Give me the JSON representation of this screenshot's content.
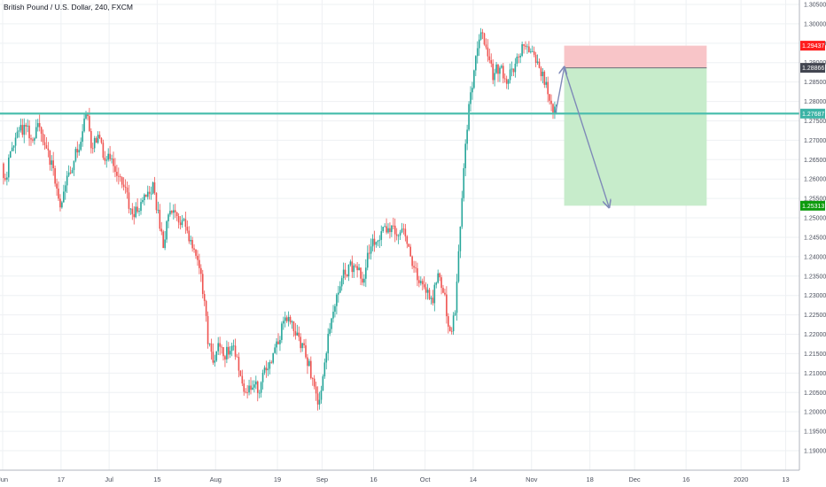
{
  "header": {
    "title": "British Pound / U.S. Dollar, 240, FXCM"
  },
  "colors": {
    "bull": "#26a69a",
    "bear": "#ef5350",
    "hline": "#4dbfae",
    "stop_zone": "#f8c5c8",
    "target_zone": "#c7eccb",
    "arrow": "#7f8ab8",
    "badge_red": "#ff1e1e",
    "badge_dark": "#434651",
    "badge_teal": "#3bb3a5",
    "badge_green": "#0d9b0d"
  },
  "chart_data": {
    "type": "candlestick",
    "instrument": "British Pound / U.S. Dollar",
    "interval": "240",
    "source": "FXCM",
    "ylim": [
      1.188,
      1.307
    ],
    "y_ticks": [
      "1.30500",
      "1.30000",
      "1.29500",
      "1.29000",
      "1.28500",
      "1.28000",
      "1.27500",
      "1.27000",
      "1.26500",
      "1.26000",
      "1.25500",
      "1.25000",
      "1.24500",
      "1.24000",
      "1.23500",
      "1.23000",
      "1.22500",
      "1.22000",
      "1.21500",
      "1.21000",
      "1.20500",
      "1.20000",
      "1.19500",
      "1.19000"
    ],
    "x_ticks": [
      {
        "label": "Jun",
        "x": 0
      },
      {
        "label": "17",
        "x": 17
      },
      {
        "label": "Jul",
        "x": 31
      },
      {
        "label": "15",
        "x": 45
      },
      {
        "label": "Aug",
        "x": 62
      },
      {
        "label": "19",
        "x": 80
      },
      {
        "label": "Sep",
        "x": 93
      },
      {
        "label": "16",
        "x": 108
      },
      {
        "label": "Oct",
        "x": 123
      },
      {
        "label": "14",
        "x": 137
      },
      {
        "label": "Nov",
        "x": 154
      },
      {
        "label": "18",
        "x": 171
      },
      {
        "label": "Dec",
        "x": 184
      },
      {
        "label": "16",
        "x": 199
      },
      {
        "label": "2020",
        "x": 215
      },
      {
        "label": "13",
        "x": 228
      }
    ],
    "price_path": [
      [
        0,
        1.264
      ],
      [
        1,
        1.26
      ],
      [
        3,
        1.268
      ],
      [
        5,
        1.272
      ],
      [
        7,
        1.274
      ],
      [
        9,
        1.27
      ],
      [
        11,
        1.274
      ],
      [
        13,
        1.268
      ],
      [
        15,
        1.262
      ],
      [
        17,
        1.253
      ],
      [
        19,
        1.26
      ],
      [
        21,
        1.265
      ],
      [
        23,
        1.27
      ],
      [
        24,
        1.274
      ],
      [
        25,
        1.276
      ],
      [
        26,
        1.269
      ],
      [
        28,
        1.27
      ],
      [
        30,
        1.266
      ],
      [
        32,
        1.264
      ],
      [
        34,
        1.26
      ],
      [
        36,
        1.257
      ],
      [
        38,
        1.251
      ],
      [
        40,
        1.252
      ],
      [
        42,
        1.255
      ],
      [
        44,
        1.258
      ],
      [
        46,
        1.248
      ],
      [
        47,
        1.243
      ],
      [
        49,
        1.253
      ],
      [
        51,
        1.25
      ],
      [
        53,
        1.249
      ],
      [
        55,
        1.244
      ],
      [
        57,
        1.24
      ],
      [
        59,
        1.228
      ],
      [
        60,
        1.218
      ],
      [
        62,
        1.212
      ],
      [
        63,
        1.217
      ],
      [
        65,
        1.215
      ],
      [
        67,
        1.218
      ],
      [
        69,
        1.212
      ],
      [
        71,
        1.205
      ],
      [
        73,
        1.208
      ],
      [
        75,
        1.206
      ],
      [
        77,
        1.211
      ],
      [
        79,
        1.215
      ],
      [
        81,
        1.22
      ],
      [
        83,
        1.225
      ],
      [
        85,
        1.222
      ],
      [
        87,
        1.218
      ],
      [
        89,
        1.213
      ],
      [
        91,
        1.207
      ],
      [
        92,
        1.201
      ],
      [
        93,
        1.206
      ],
      [
        95,
        1.22
      ],
      [
        97,
        1.229
      ],
      [
        99,
        1.235
      ],
      [
        101,
        1.237
      ],
      [
        103,
        1.238
      ],
      [
        105,
        1.233
      ],
      [
        107,
        1.242
      ],
      [
        109,
        1.245
      ],
      [
        111,
        1.247
      ],
      [
        113,
        1.248
      ],
      [
        115,
        1.245
      ],
      [
        117,
        1.247
      ],
      [
        119,
        1.24
      ],
      [
        121,
        1.234
      ],
      [
        123,
        1.232
      ],
      [
        125,
        1.228
      ],
      [
        127,
        1.235
      ],
      [
        129,
        1.23
      ],
      [
        130,
        1.222
      ],
      [
        131,
        1.222
      ],
      [
        132,
        1.225
      ],
      [
        133,
        1.24
      ],
      [
        134,
        1.255
      ],
      [
        135,
        1.268
      ],
      [
        136,
        1.278
      ],
      [
        137,
        1.285
      ],
      [
        138,
        1.292
      ],
      [
        139,
        1.295
      ],
      [
        140,
        1.298
      ],
      [
        141,
        1.294
      ],
      [
        142,
        1.29
      ],
      [
        143,
        1.287
      ],
      [
        145,
        1.289
      ],
      [
        147,
        1.285
      ],
      [
        149,
        1.288
      ],
      [
        151,
        1.293
      ],
      [
        153,
        1.295
      ],
      [
        155,
        1.291
      ],
      [
        157,
        1.288
      ],
      [
        158,
        1.285
      ],
      [
        159,
        1.282
      ],
      [
        160,
        1.279
      ],
      [
        161,
        1.2775
      ]
    ],
    "horizontal_line": 1.27687,
    "position": {
      "type": "short",
      "x_start": 163.5,
      "x_end": 205,
      "stop": 1.29437,
      "entry": 1.28866,
      "target": 1.25313,
      "labels": {
        "stop": "1.29437",
        "entry": "1.28866",
        "line": "1.27687",
        "target": "1.25313"
      }
    },
    "projection_path": [
      [
        161,
        1.277
      ],
      [
        163.5,
        1.28866
      ],
      [
        176.5,
        1.2529
      ]
    ]
  }
}
